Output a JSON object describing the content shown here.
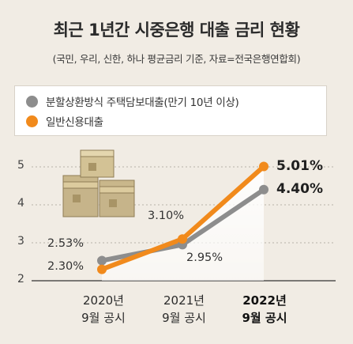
{
  "header": {
    "title": "최근 1년간 시중은행 대출 금리 현황",
    "subtitle": "(국민, 우리, 신한, 하나 평균금리 기준, 자료=전국은행연합회)"
  },
  "legend": [
    {
      "label": "분할상환방식 주택담보대출(만기 10년 이상)",
      "color": "#8d8d8d"
    },
    {
      "label": "일반신용대출",
      "color": "#f18a1c"
    }
  ],
  "chart_data": {
    "type": "line",
    "categories": [
      {
        "year": "2020년",
        "sub": "9월 공시"
      },
      {
        "year": "2021년",
        "sub": "9월 공시"
      },
      {
        "year": "2022년",
        "sub": "9월 공시"
      }
    ],
    "y_ticks": [
      "5",
      "4",
      "3",
      "2"
    ],
    "ylim": [
      2,
      5.4
    ],
    "series": [
      {
        "name": "분할상환방식 주택담보대출(만기 10년 이상)",
        "color": "#8d8d8d",
        "values": [
          2.53,
          2.95,
          4.4
        ],
        "labels": [
          "2.53%",
          "2.95%",
          "4.40%"
        ]
      },
      {
        "name": "일반신용대출",
        "color": "#f18a1c",
        "values": [
          2.3,
          3.1,
          5.01
        ],
        "labels": [
          "2.30%",
          "3.10%",
          "5.01%"
        ]
      }
    ]
  }
}
